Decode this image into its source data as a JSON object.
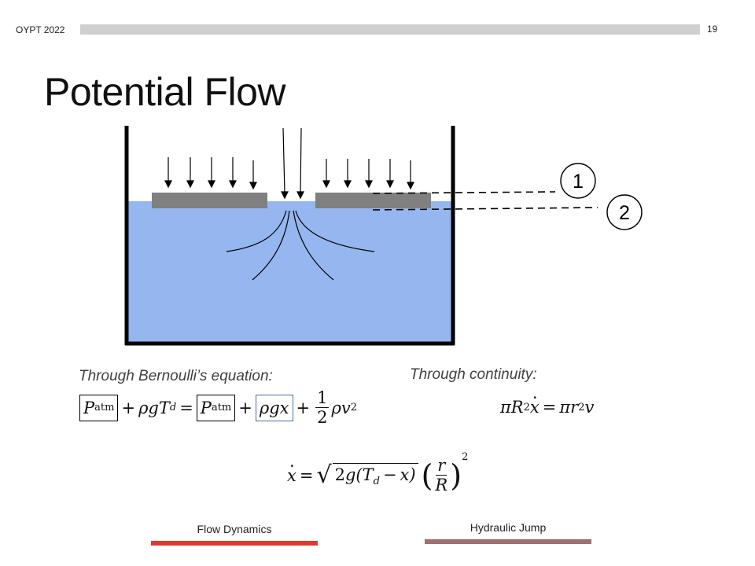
{
  "header": {
    "label": "OYPT 2022",
    "page_number": "19"
  },
  "title": "Potential Flow",
  "diagram": {
    "marker_1": "1",
    "marker_2": "2",
    "colors": {
      "water": "#95b6ee",
      "plate": "#808080",
      "container": "#000000"
    }
  },
  "equations": {
    "bernoulli_caption": "Through Bernoulli’s equation:",
    "continuity_caption": "Through continuity:",
    "patm_sub": "atm",
    "two": "2",
    "one": "1",
    "d_sub": "d"
  },
  "nav": {
    "flow_dynamics": {
      "label": "Flow Dynamics",
      "color": "#e03a2f"
    },
    "hydraulic_jump": {
      "label": "Hydraulic Jump",
      "color": "#a07070"
    }
  }
}
